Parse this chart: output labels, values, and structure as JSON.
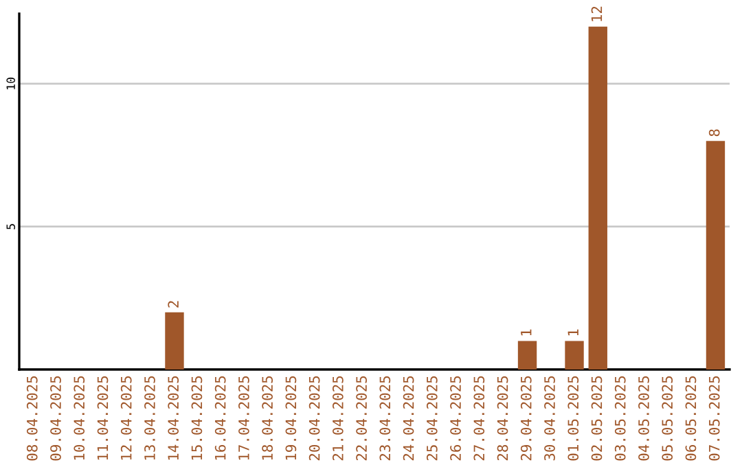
{
  "chart_data": {
    "type": "bar",
    "categories": [
      "08.04.2025",
      "09.04.2025",
      "10.04.2025",
      "11.04.2025",
      "12.04.2025",
      "13.04.2025",
      "14.04.2025",
      "15.04.2025",
      "16.04.2025",
      "17.04.2025",
      "18.04.2025",
      "19.04.2025",
      "20.04.2025",
      "21.04.2025",
      "22.04.2025",
      "23.04.2025",
      "24.04.2025",
      "25.04.2025",
      "26.04.2025",
      "27.04.2025",
      "28.04.2025",
      "29.04.2025",
      "30.04.2025",
      "01.05.2025",
      "02.05.2025",
      "03.05.2025",
      "04.05.2025",
      "05.05.2025",
      "06.05.2025",
      "07.05.2025"
    ],
    "values": [
      0,
      0,
      0,
      0,
      0,
      0,
      2,
      0,
      0,
      0,
      0,
      0,
      0,
      0,
      0,
      0,
      0,
      0,
      0,
      0,
      0,
      1,
      0,
      1,
      12,
      0,
      0,
      0,
      0,
      8
    ],
    "value_labels": [
      null,
      null,
      null,
      null,
      null,
      null,
      "2",
      null,
      null,
      null,
      null,
      null,
      null,
      null,
      null,
      null,
      null,
      null,
      null,
      null,
      null,
      "1",
      null,
      "1",
      "12",
      null,
      null,
      null,
      null,
      "8"
    ],
    "color": "#a0572a",
    "ylim": [
      0,
      12.45
    ],
    "yticks": [
      5,
      10
    ],
    "grid": "y",
    "legend": false
  }
}
